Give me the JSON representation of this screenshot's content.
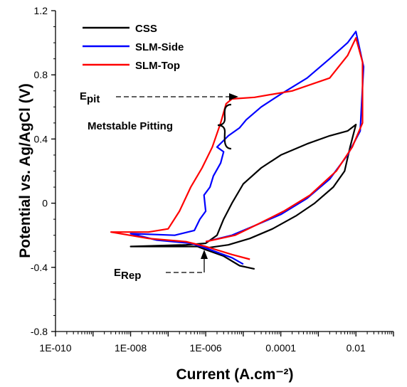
{
  "chart_data": {
    "type": "line",
    "title": "",
    "xlabel": "Current (A.cm⁻²)",
    "ylabel": "Potential vs. Ag/AgCl (V)",
    "x_scale": "log",
    "xlim": [
      1e-10,
      0.1
    ],
    "ylim": [
      -0.8,
      1.2
    ],
    "x_ticks": [
      "1E-010",
      "1E-008",
      "1E-006",
      "0.0001",
      "0.01"
    ],
    "y_ticks": [
      "-0.8",
      "-0.4",
      "0",
      "0.4",
      "0.8",
      "1.2"
    ],
    "grid": false,
    "legend_position": "top-left",
    "series": [
      {
        "name": "CSS",
        "color": "#000000",
        "points": [
          [
            2e-05,
            -0.41
          ],
          [
            8e-06,
            -0.39
          ],
          [
            3e-06,
            -0.33
          ],
          [
            1e-06,
            -0.29
          ],
          [
            6e-07,
            -0.27
          ],
          [
            2e-07,
            -0.27
          ],
          [
            1e-08,
            -0.27
          ],
          [
            3e-07,
            -0.26
          ],
          [
            1e-06,
            -0.25
          ],
          [
            2e-06,
            -0.2
          ],
          [
            3e-06,
            -0.1
          ],
          [
            5e-06,
            0
          ],
          [
            1e-05,
            0.12
          ],
          [
            3e-05,
            0.22
          ],
          [
            0.0001,
            0.3
          ],
          [
            0.0005,
            0.37
          ],
          [
            0.002,
            0.42
          ],
          [
            0.006,
            0.45
          ],
          [
            0.01,
            0.49
          ],
          [
            0.007,
            0.35
          ],
          [
            0.005,
            0.2
          ],
          [
            0.0025,
            0.1
          ],
          [
            0.0008,
            0
          ],
          [
            0.00025,
            -0.08
          ],
          [
            6e-05,
            -0.16
          ],
          [
            1.5e-05,
            -0.22
          ],
          [
            4e-06,
            -0.26
          ],
          [
            1e-06,
            -0.28
          ]
        ]
      },
      {
        "name": "SLM-Side",
        "color": "#0000ff",
        "points": [
          [
            1e-05,
            -0.38
          ],
          [
            5e-06,
            -0.34
          ],
          [
            1e-06,
            -0.28
          ],
          [
            4e-07,
            -0.25
          ],
          [
            5e-08,
            -0.23
          ],
          [
            1e-08,
            -0.19
          ],
          [
            1.5e-07,
            -0.2
          ],
          [
            5e-07,
            -0.17
          ],
          [
            7e-07,
            -0.1
          ],
          [
            1e-06,
            -0.05
          ],
          [
            9e-07,
            0.05
          ],
          [
            1.3e-06,
            0.1
          ],
          [
            1.6e-06,
            0.17
          ],
          [
            2.5e-06,
            0.25
          ],
          [
            3e-06,
            0.32
          ],
          [
            2e-06,
            0.35
          ],
          [
            4e-06,
            0.42
          ],
          [
            8e-06,
            0.47
          ],
          [
            1.2e-05,
            0.52
          ],
          [
            3e-05,
            0.6
          ],
          [
            0.0001,
            0.68
          ],
          [
            0.0005,
            0.78
          ],
          [
            0.002,
            0.9
          ],
          [
            0.006,
            1.0
          ],
          [
            0.01,
            1.07
          ],
          [
            0.016,
            0.85
          ],
          [
            0.013,
            0.45
          ],
          [
            0.006,
            0.3
          ],
          [
            0.002,
            0.15
          ],
          [
            0.0005,
            0.03
          ],
          [
            0.0001,
            -0.07
          ],
          [
            2e-05,
            -0.14
          ],
          [
            5e-06,
            -0.2
          ],
          [
            1e-06,
            -0.24
          ]
        ]
      },
      {
        "name": "SLM-Top",
        "color": "#ff0000",
        "points": [
          [
            1.5e-05,
            -0.35
          ],
          [
            5e-06,
            -0.32
          ],
          [
            1e-06,
            -0.27
          ],
          [
            3e-07,
            -0.24
          ],
          [
            3e-08,
            -0.22
          ],
          [
            3e-09,
            -0.18
          ],
          [
            3e-08,
            -0.18
          ],
          [
            1e-07,
            -0.16
          ],
          [
            2e-07,
            -0.05
          ],
          [
            4e-07,
            0.1
          ],
          [
            8e-07,
            0.22
          ],
          [
            1.5e-06,
            0.35
          ],
          [
            2.5e-06,
            0.5
          ],
          [
            3.5e-06,
            0.62
          ],
          [
            5e-06,
            0.65
          ],
          [
            2e-05,
            0.66
          ],
          [
            0.0002,
            0.7
          ],
          [
            0.002,
            0.78
          ],
          [
            0.006,
            0.92
          ],
          [
            0.01,
            1.03
          ],
          [
            0.015,
            0.88
          ],
          [
            0.015,
            0.5
          ],
          [
            0.008,
            0.35
          ],
          [
            0.003,
            0.2
          ],
          [
            0.0006,
            0.05
          ],
          [
            0.00012,
            -0.05
          ],
          [
            2.5e-05,
            -0.13
          ],
          [
            6e-06,
            -0.2
          ],
          [
            1e-06,
            -0.24
          ]
        ]
      }
    ],
    "annotations": {
      "epit_main": "E",
      "epit_sub": "pit",
      "erep_main": "E",
      "erep_sub": "Rep",
      "metastable": "Metstable Pitting"
    }
  }
}
